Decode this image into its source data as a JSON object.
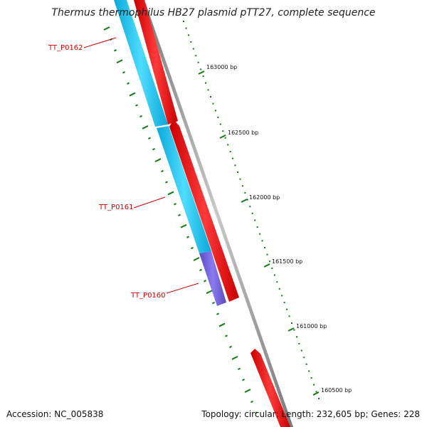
{
  "title": "Thermus thermophilus HB27 plasmid pTT27, complete sequence",
  "footer": {
    "accession": "Accession: NC_005838",
    "summary": "Topology: circular; Length: 232,605 bp; Genes: 228"
  },
  "ticks": [
    {
      "label": "163000 bp"
    },
    {
      "label": "162500 bp"
    },
    {
      "label": "162000 bp"
    },
    {
      "label": "161500 bp"
    },
    {
      "label": "161000 bp"
    },
    {
      "label": "160500 bp"
    }
  ],
  "genes": [
    {
      "label": "TT_P0162"
    },
    {
      "label": "TT_P0161"
    },
    {
      "label": "TT_P0160"
    }
  ],
  "colors": {
    "forward_cds": "#ff0000",
    "reverse_cds": "#1ec8f5",
    "reverse_cds_highlight": "#6a5acd",
    "backbone": "#888888",
    "ticks": "#117a11",
    "gene_label": "#cc0000"
  }
}
